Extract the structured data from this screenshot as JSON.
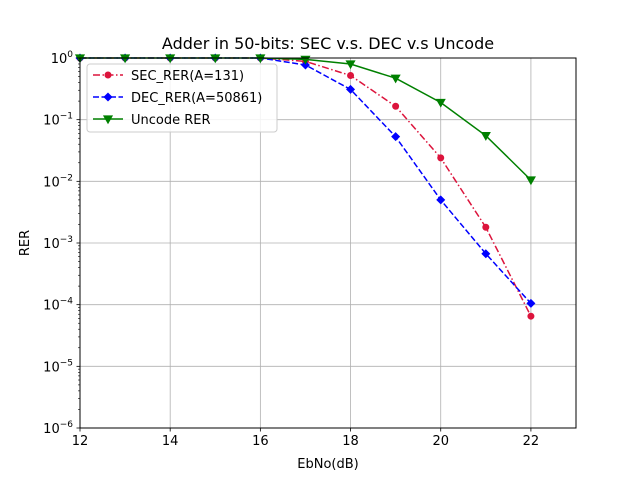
{
  "chart_data": {
    "type": "line",
    "title": "Adder in 50-bits: SEC v.s. DEC v.s Uncode",
    "xlabel": "EbNo(dB)",
    "ylabel": "RER",
    "xlim": [
      12,
      23
    ],
    "ylim": [
      1e-06,
      1
    ],
    "yscale": "log",
    "grid": true,
    "legend_position": "upper-left",
    "x_ticks": [
      {
        "value": 12,
        "label": "12"
      },
      {
        "value": 14,
        "label": "14"
      },
      {
        "value": 16,
        "label": "16"
      },
      {
        "value": 18,
        "label": "18"
      },
      {
        "value": 20,
        "label": "20"
      },
      {
        "value": 22,
        "label": "22"
      }
    ],
    "y_ticks": [
      {
        "exp": 0,
        "base": "10",
        "sup": "0"
      },
      {
        "exp": -1,
        "base": "10",
        "sup": "−1"
      },
      {
        "exp": -2,
        "base": "10",
        "sup": "−2"
      },
      {
        "exp": -3,
        "base": "10",
        "sup": "−3"
      },
      {
        "exp": -4,
        "base": "10",
        "sup": "−4"
      },
      {
        "exp": -5,
        "base": "10",
        "sup": "−5"
      },
      {
        "exp": -6,
        "base": "10",
        "sup": "−6"
      }
    ],
    "series": [
      {
        "name": "SEC_RER(A=131)",
        "color": "#dc143c",
        "dash": "dashdot",
        "marker": "circle",
        "x": [
          12,
          13,
          14,
          15,
          16,
          17,
          18,
          19,
          20,
          21,
          22
        ],
        "y": [
          1.0,
          1.0,
          1.0,
          1.0,
          1.0,
          0.88,
          0.52,
          0.165,
          0.024,
          0.0018,
          6.5e-05
        ]
      },
      {
        "name": "DEC_RER(A=50861)",
        "color": "#0000ff",
        "dash": "dashed",
        "marker": "diamond",
        "x": [
          12,
          13,
          14,
          15,
          16,
          17,
          18,
          19,
          20,
          21,
          22
        ],
        "y": [
          1.0,
          1.0,
          1.0,
          1.0,
          1.0,
          0.77,
          0.31,
          0.053,
          0.005,
          0.00067,
          0.000105
        ]
      },
      {
        "name": "Uncode RER",
        "color": "#008000",
        "dash": "solid",
        "marker": "triangle-down",
        "x": [
          12,
          13,
          14,
          15,
          16,
          17,
          18,
          19,
          20,
          21,
          22
        ],
        "y": [
          1.0,
          1.0,
          1.0,
          1.0,
          1.0,
          0.95,
          0.8,
          0.47,
          0.19,
          0.055,
          0.0105
        ]
      }
    ]
  }
}
